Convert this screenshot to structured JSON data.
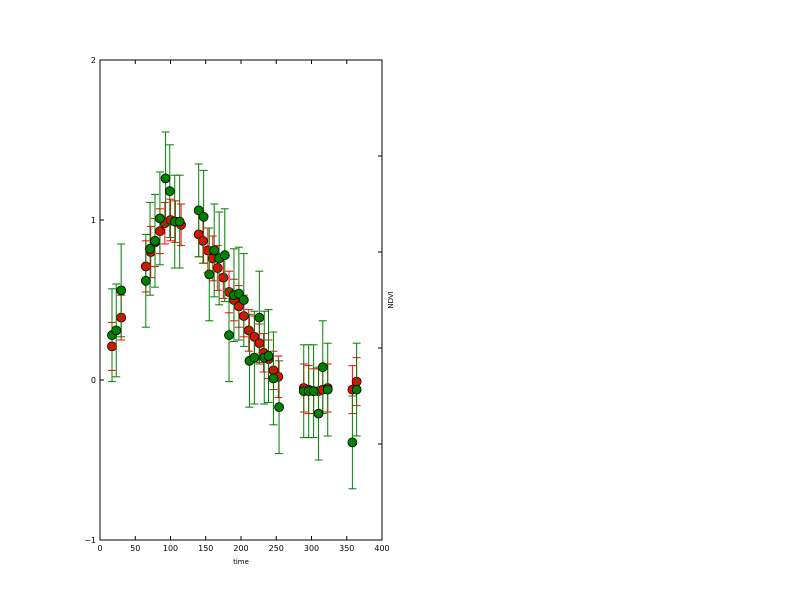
{
  "chart_data": {
    "type": "scatter",
    "title": "",
    "xlabel": "time",
    "ylabel": "",
    "y2label": "NDVI",
    "xlim": [
      0,
      400
    ],
    "ylim": [
      -1,
      2
    ],
    "xticks": [
      0,
      50,
      100,
      150,
      200,
      250,
      300,
      350,
      400
    ],
    "yticks": [
      -1,
      0,
      1,
      2
    ],
    "grid": false,
    "series": [
      {
        "color": "#ff0000",
        "errorbar_color": "#ff0000",
        "points": [
          {
            "x": 17,
            "y": 0.21,
            "err": 0.15
          },
          {
            "x": 30,
            "y": 0.39,
            "err": 0.14
          },
          {
            "x": 65,
            "y": 0.71,
            "err": 0.16
          },
          {
            "x": 72,
            "y": 0.8,
            "err": 0.16
          },
          {
            "x": 78,
            "y": 0.86,
            "err": 0.15
          },
          {
            "x": 85,
            "y": 0.93,
            "err": 0.14
          },
          {
            "x": 92,
            "y": 0.98,
            "err": 0.13
          },
          {
            "x": 100,
            "y": 1.0,
            "err": 0.13
          },
          {
            "x": 107,
            "y": 0.99,
            "err": 0.13
          },
          {
            "x": 115,
            "y": 0.97,
            "err": 0.13
          },
          {
            "x": 140,
            "y": 0.91,
            "err": 0.14
          },
          {
            "x": 146,
            "y": 0.87,
            "err": 0.14
          },
          {
            "x": 153,
            "y": 0.81,
            "err": 0.14
          },
          {
            "x": 160,
            "y": 0.76,
            "err": 0.14
          },
          {
            "x": 167,
            "y": 0.7,
            "err": 0.14
          },
          {
            "x": 175,
            "y": 0.64,
            "err": 0.13
          },
          {
            "x": 183,
            "y": 0.55,
            "err": 0.13
          },
          {
            "x": 190,
            "y": 0.5,
            "err": 0.13
          },
          {
            "x": 197,
            "y": 0.46,
            "err": 0.13
          },
          {
            "x": 204,
            "y": 0.4,
            "err": 0.13
          },
          {
            "x": 211,
            "y": 0.31,
            "err": 0.13
          },
          {
            "x": 219,
            "y": 0.27,
            "err": 0.13
          },
          {
            "x": 226,
            "y": 0.23,
            "err": 0.12
          },
          {
            "x": 232,
            "y": 0.17,
            "err": 0.12
          },
          {
            "x": 239,
            "y": 0.13,
            "err": 0.12
          },
          {
            "x": 246,
            "y": 0.06,
            "err": 0.12
          },
          {
            "x": 253,
            "y": 0.02,
            "err": 0.13
          },
          {
            "x": 289,
            "y": -0.05,
            "err": 0.15
          },
          {
            "x": 296,
            "y": -0.06,
            "err": 0.15
          },
          {
            "x": 303,
            "y": -0.07,
            "err": 0.14
          },
          {
            "x": 310,
            "y": -0.07,
            "err": 0.14
          },
          {
            "x": 316,
            "y": -0.06,
            "err": 0.14
          },
          {
            "x": 323,
            "y": -0.05,
            "err": 0.15
          },
          {
            "x": 358,
            "y": -0.06,
            "err": 0.15
          },
          {
            "x": 364,
            "y": -0.01,
            "err": 0.15
          }
        ]
      },
      {
        "color": "#008000",
        "errorbar_color": "#008000",
        "points": [
          {
            "x": 17,
            "y": 0.28,
            "err": 0.29
          },
          {
            "x": 23,
            "y": 0.31,
            "err": 0.29
          },
          {
            "x": 30,
            "y": 0.56,
            "err": 0.29
          },
          {
            "x": 65,
            "y": 0.62,
            "err": 0.29
          },
          {
            "x": 71,
            "y": 0.82,
            "err": 0.29
          },
          {
            "x": 78,
            "y": 0.87,
            "err": 0.29
          },
          {
            "x": 85,
            "y": 1.01,
            "err": 0.29
          },
          {
            "x": 93,
            "y": 1.26,
            "err": 0.29
          },
          {
            "x": 99,
            "y": 1.18,
            "err": 0.29
          },
          {
            "x": 106,
            "y": 0.99,
            "err": 0.29
          },
          {
            "x": 113,
            "y": 0.99,
            "err": 0.29
          },
          {
            "x": 140,
            "y": 1.06,
            "err": 0.29
          },
          {
            "x": 147,
            "y": 1.02,
            "err": 0.29
          },
          {
            "x": 155,
            "y": 0.66,
            "err": 0.29
          },
          {
            "x": 162,
            "y": 0.81,
            "err": 0.29
          },
          {
            "x": 169,
            "y": 0.76,
            "err": 0.29
          },
          {
            "x": 177,
            "y": 0.78,
            "err": 0.29
          },
          {
            "x": 183,
            "y": 0.28,
            "err": 0.29
          },
          {
            "x": 190,
            "y": 0.53,
            "err": 0.29
          },
          {
            "x": 197,
            "y": 0.54,
            "err": 0.29
          },
          {
            "x": 204,
            "y": 0.5,
            "err": 0.29
          },
          {
            "x": 212,
            "y": 0.12,
            "err": 0.29
          },
          {
            "x": 219,
            "y": 0.14,
            "err": 0.29
          },
          {
            "x": 226,
            "y": 0.39,
            "err": 0.29
          },
          {
            "x": 233,
            "y": 0.14,
            "err": 0.29
          },
          {
            "x": 239,
            "y": 0.15,
            "err": 0.29
          },
          {
            "x": 246,
            "y": 0.01,
            "err": 0.29
          },
          {
            "x": 254,
            "y": -0.17,
            "err": 0.29
          },
          {
            "x": 289,
            "y": -0.07,
            "err": 0.29
          },
          {
            "x": 296,
            "y": -0.07,
            "err": 0.29
          },
          {
            "x": 303,
            "y": -0.07,
            "err": 0.29
          },
          {
            "x": 310,
            "y": -0.21,
            "err": 0.29
          },
          {
            "x": 316,
            "y": 0.08,
            "err": 0.29
          },
          {
            "x": 323,
            "y": -0.06,
            "err": 0.29
          },
          {
            "x": 358,
            "y": -0.39,
            "err": 0.29
          },
          {
            "x": 364,
            "y": -0.06,
            "err": 0.29
          }
        ]
      }
    ]
  }
}
